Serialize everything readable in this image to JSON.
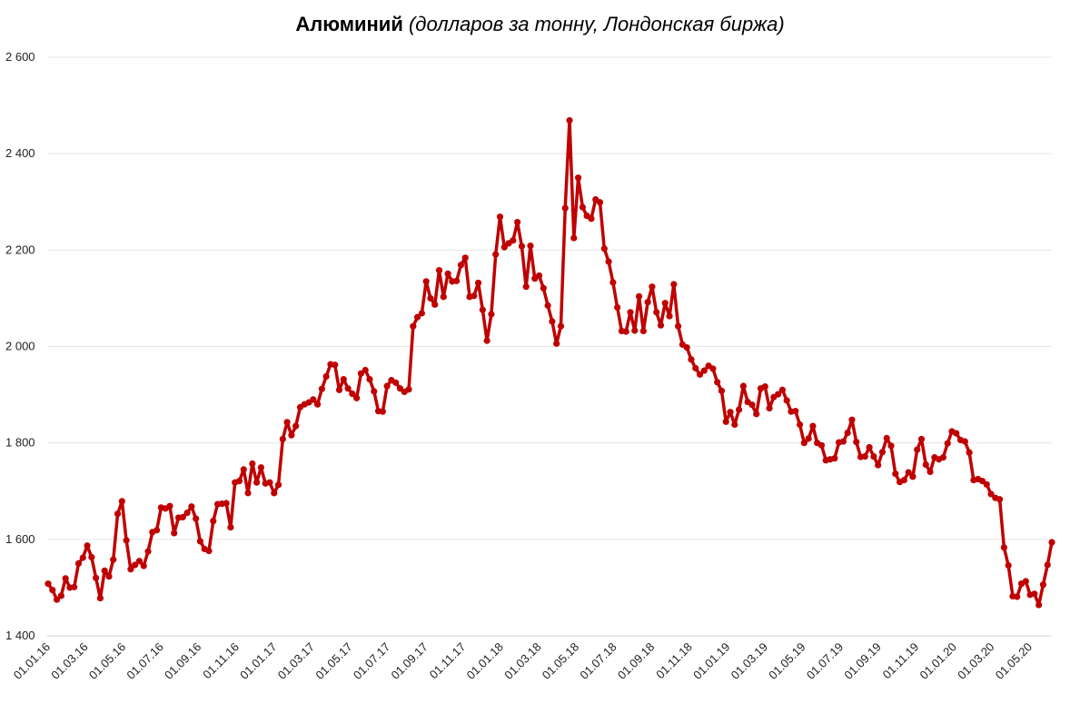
{
  "chart_data": {
    "type": "line",
    "title_bold": "Алюминий",
    "title_italic": "(долларов за тонну, Лондонская биржа)",
    "ylim": [
      1400,
      2600
    ],
    "yticks": [
      1400,
      1600,
      1800,
      2000,
      2200,
      2400,
      2600
    ],
    "ytick_labels": [
      "1 400",
      "1 600",
      "1 800",
      "2 000",
      "2 200",
      "2 400",
      "2 600"
    ],
    "xtick_labels": [
      "01.01.16",
      "01.03.16",
      "01.05.16",
      "01.07.16",
      "01.09.16",
      "01.11.16",
      "01.01.17",
      "01.03.17",
      "01.05.17",
      "01.07.17",
      "01.09.17",
      "01.11.17",
      "01.01.18",
      "01.03.18",
      "01.05.18",
      "01.07.18",
      "01.09.18",
      "01.11.18",
      "01.01.19",
      "01.03.19",
      "01.05.19",
      "01.07.19",
      "01.09.19",
      "01.11.19",
      "01.01.20",
      "01.03.20",
      "01.05.20"
    ],
    "grid": true,
    "legend": "none",
    "line_color": "#C00000",
    "series": [
      {
        "values": [
          1508,
          1495,
          1475,
          1483,
          1519,
          1500,
          1501,
          1550,
          1562,
          1587,
          1563,
          1520,
          1478,
          1535,
          1523,
          1558,
          1653,
          1679,
          1598,
          1538,
          1547,
          1555,
          1545,
          1575,
          1615,
          1619,
          1666,
          1664,
          1669,
          1613,
          1645,
          1646,
          1655,
          1668,
          1643,
          1596,
          1580,
          1576,
          1638,
          1673,
          1674,
          1675,
          1625,
          1718,
          1721,
          1745,
          1696,
          1757,
          1718,
          1749,
          1716,
          1718,
          1696,
          1713,
          1808,
          1843,
          1816,
          1835,
          1874,
          1880,
          1884,
          1890,
          1880,
          1912,
          1938,
          1963,
          1962,
          1910,
          1932,
          1913,
          1902,
          1893,
          1944,
          1951,
          1932,
          1907,
          1866,
          1865,
          1918,
          1930,
          1925,
          1913,
          1906,
          1911,
          2042,
          2061,
          2069,
          2135,
          2100,
          2087,
          2158,
          2103,
          2151,
          2135,
          2136,
          2169,
          2184,
          2103,
          2105,
          2132,
          2076,
          2012,
          2067,
          2191,
          2269,
          2206,
          2214,
          2220,
          2258,
          2208,
          2124,
          2209,
          2141,
          2147,
          2121,
          2085,
          2052,
          2006,
          2042,
          2287,
          2469,
          2225,
          2350,
          2289,
          2271,
          2265,
          2305,
          2299,
          2203,
          2176,
          2133,
          2081,
          2032,
          2031,
          2071,
          2033,
          2104,
          2032,
          2092,
          2124,
          2071,
          2044,
          2090,
          2063,
          2129,
          2042,
          2004,
          1998,
          1973,
          1955,
          1942,
          1950,
          1960,
          1954,
          1926,
          1908,
          1844,
          1864,
          1838,
          1869,
          1918,
          1885,
          1879,
          1860,
          1913,
          1917,
          1872,
          1895,
          1901,
          1910,
          1888,
          1865,
          1866,
          1838,
          1800,
          1809,
          1835,
          1800,
          1795,
          1764,
          1766,
          1768,
          1801,
          1803,
          1821,
          1848,
          1802,
          1771,
          1772,
          1791,
          1772,
          1754,
          1781,
          1810,
          1794,
          1736,
          1719,
          1723,
          1739,
          1730,
          1786,
          1808,
          1755,
          1740,
          1770,
          1766,
          1770,
          1799,
          1824,
          1820,
          1806,
          1803,
          1780,
          1723,
          1725,
          1721,
          1714,
          1694,
          1686,
          1683,
          1583,
          1546,
          1482,
          1481,
          1508,
          1513,
          1485,
          1487,
          1464,
          1506,
          1547,
          1594
        ]
      }
    ]
  }
}
